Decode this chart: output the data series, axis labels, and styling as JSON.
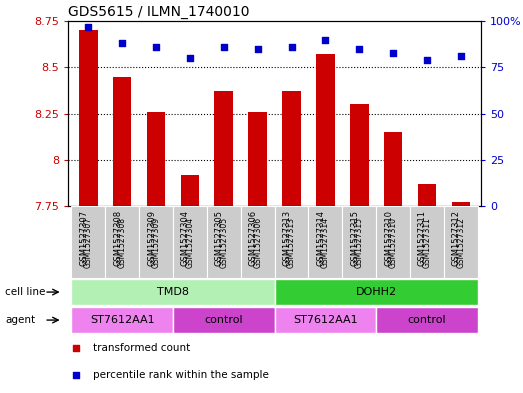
{
  "title": "GDS5615 / ILMN_1740010",
  "samples": [
    "GSM1527307",
    "GSM1527308",
    "GSM1527309",
    "GSM1527304",
    "GSM1527305",
    "GSM1527306",
    "GSM1527313",
    "GSM1527314",
    "GSM1527315",
    "GSM1527310",
    "GSM1527311",
    "GSM1527312"
  ],
  "bar_values": [
    8.7,
    8.45,
    8.26,
    7.92,
    8.37,
    8.26,
    8.37,
    8.57,
    8.3,
    8.15,
    7.87,
    7.77
  ],
  "percentile_values": [
    97,
    88,
    86,
    80,
    86,
    85,
    86,
    90,
    85,
    83,
    79,
    81
  ],
  "ylim_left": [
    7.75,
    8.75
  ],
  "ylim_right": [
    0,
    100
  ],
  "yticks_left": [
    7.75,
    8.0,
    8.25,
    8.5,
    8.75
  ],
  "yticks_left_labels": [
    "7.75",
    "8",
    "8.25",
    "8.5",
    "8.75"
  ],
  "yticks_right": [
    0,
    25,
    50,
    75,
    100
  ],
  "yticks_right_labels": [
    "0",
    "25",
    "50",
    "75",
    "100%"
  ],
  "bar_color": "#cc0000",
  "dot_color": "#0000cc",
  "background_color": "#ffffff",
  "cell_line_groups": [
    {
      "label": "TMD8",
      "start": 0,
      "end": 6,
      "color": "#b3f0b3"
    },
    {
      "label": "DOHH2",
      "start": 6,
      "end": 12,
      "color": "#33cc33"
    }
  ],
  "agent_groups": [
    {
      "label": "ST7612AA1",
      "start": 0,
      "end": 3,
      "color": "#ee82ee"
    },
    {
      "label": "control",
      "start": 3,
      "end": 6,
      "color": "#cc44cc"
    },
    {
      "label": "ST7612AA1",
      "start": 6,
      "end": 9,
      "color": "#ee82ee"
    },
    {
      "label": "control",
      "start": 9,
      "end": 12,
      "color": "#cc44cc"
    }
  ],
  "legend_items": [
    {
      "label": "transformed count",
      "color": "#cc0000",
      "marker": "s"
    },
    {
      "label": "percentile rank within the sample",
      "color": "#0000cc",
      "marker": "s"
    }
  ],
  "sample_bg_color": "#cccccc",
  "left_label_color": "#cc0000",
  "right_label_color": "#0000cc",
  "left_label_text": "cell line",
  "right_label_text": "agent"
}
